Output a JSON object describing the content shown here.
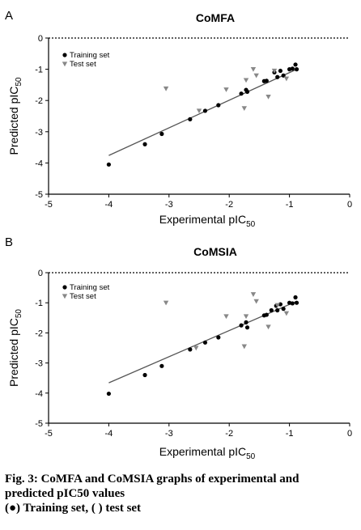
{
  "chart_data": [
    {
      "type": "scatter",
      "panel_label": "A",
      "title": "CoMFA",
      "xlabel_main": "Experimental pIC",
      "xlabel_sub": "50",
      "ylabel_main": "Predicted pIC",
      "ylabel_sub": "50",
      "xlim": [
        -5,
        0
      ],
      "ylim": [
        -5,
        0
      ],
      "xticks": [
        "-5",
        "-4",
        "-3",
        "-2",
        "-1",
        "0"
      ],
      "yticks": [
        "0",
        "-1",
        "-2",
        "-3",
        "-4",
        "-5"
      ],
      "legend_position": "top-left",
      "regression_line": [
        [
          -4.0,
          -3.76
        ],
        [
          -0.88,
          -1.0
        ]
      ],
      "reference_line_y": 0,
      "series": [
        {
          "name": "Training set",
          "marker": "circle",
          "color": "#000000",
          "points": [
            [
              -4.0,
              -4.05
            ],
            [
              -3.4,
              -3.4
            ],
            [
              -3.12,
              -3.07
            ],
            [
              -2.65,
              -2.6
            ],
            [
              -2.4,
              -2.33
            ],
            [
              -2.18,
              -2.15
            ],
            [
              -1.8,
              -1.78
            ],
            [
              -1.72,
              -1.66
            ],
            [
              -1.7,
              -1.72
            ],
            [
              -1.42,
              -1.38
            ],
            [
              -1.38,
              -1.37
            ],
            [
              -1.25,
              -1.1
            ],
            [
              -1.2,
              -1.25
            ],
            [
              -1.15,
              -1.05
            ],
            [
              -1.1,
              -1.2
            ],
            [
              -1.0,
              -1.0
            ],
            [
              -0.95,
              -0.98
            ],
            [
              -0.9,
              -0.85
            ],
            [
              -0.88,
              -1.0
            ]
          ]
        },
        {
          "name": "Test set",
          "marker": "triangle-down",
          "color": "#888888",
          "points": [
            [
              -3.05,
              -1.62
            ],
            [
              -2.5,
              -2.33
            ],
            [
              -2.05,
              -1.65
            ],
            [
              -1.75,
              -2.25
            ],
            [
              -1.72,
              -1.35
            ],
            [
              -1.6,
              -1.0
            ],
            [
              -1.55,
              -1.2
            ],
            [
              -1.35,
              -1.88
            ],
            [
              -1.25,
              -1.05
            ],
            [
              -1.05,
              -1.3
            ]
          ]
        }
      ]
    },
    {
      "type": "scatter",
      "panel_label": "B",
      "title": "CoMSIA",
      "xlabel_main": "Experimental pIC",
      "xlabel_sub": "50",
      "ylabel_main": "Predicted pIC",
      "ylabel_sub": "50",
      "xlim": [
        -5,
        0
      ],
      "ylim": [
        -5,
        0
      ],
      "xticks": [
        "-5",
        "-4",
        "-3",
        "-2",
        "-1",
        "0"
      ],
      "yticks": [
        "0",
        "-1",
        "-2",
        "-3",
        "-4",
        "-5"
      ],
      "legend_position": "top-left",
      "regression_line": [
        [
          -4.0,
          -3.66
        ],
        [
          -0.88,
          -0.95
        ]
      ],
      "reference_line_y": 0,
      "series": [
        {
          "name": "Training set",
          "marker": "circle",
          "color": "#000000",
          "points": [
            [
              -4.0,
              -4.02
            ],
            [
              -3.4,
              -3.4
            ],
            [
              -3.12,
              -3.1
            ],
            [
              -2.65,
              -2.55
            ],
            [
              -2.4,
              -2.32
            ],
            [
              -2.18,
              -2.15
            ],
            [
              -1.8,
              -1.75
            ],
            [
              -1.72,
              -1.65
            ],
            [
              -1.7,
              -1.82
            ],
            [
              -1.42,
              -1.42
            ],
            [
              -1.38,
              -1.4
            ],
            [
              -1.3,
              -1.25
            ],
            [
              -1.22,
              -1.1
            ],
            [
              -1.2,
              -1.25
            ],
            [
              -1.15,
              -1.05
            ],
            [
              -1.1,
              -1.2
            ],
            [
              -1.0,
              -1.0
            ],
            [
              -0.95,
              -1.02
            ],
            [
              -0.9,
              -0.82
            ],
            [
              -0.88,
              -1.0
            ]
          ]
        },
        {
          "name": "Test set",
          "marker": "triangle-down",
          "color": "#888888",
          "points": [
            [
              -3.05,
              -1.0
            ],
            [
              -2.55,
              -2.5
            ],
            [
              -2.05,
              -1.45
            ],
            [
              -1.75,
              -2.45
            ],
            [
              -1.72,
              -1.45
            ],
            [
              -1.6,
              -0.72
            ],
            [
              -1.55,
              -0.95
            ],
            [
              -1.35,
              -1.8
            ],
            [
              -1.2,
              -1.08
            ],
            [
              -1.05,
              -1.35
            ]
          ]
        }
      ]
    }
  ],
  "caption": {
    "line1": "Fig. 3: CoMFA and CoMSIA graphs of experimental and",
    "line2": "predicted pIC50 values",
    "line3": "(●) Training set, (       ) test set"
  }
}
